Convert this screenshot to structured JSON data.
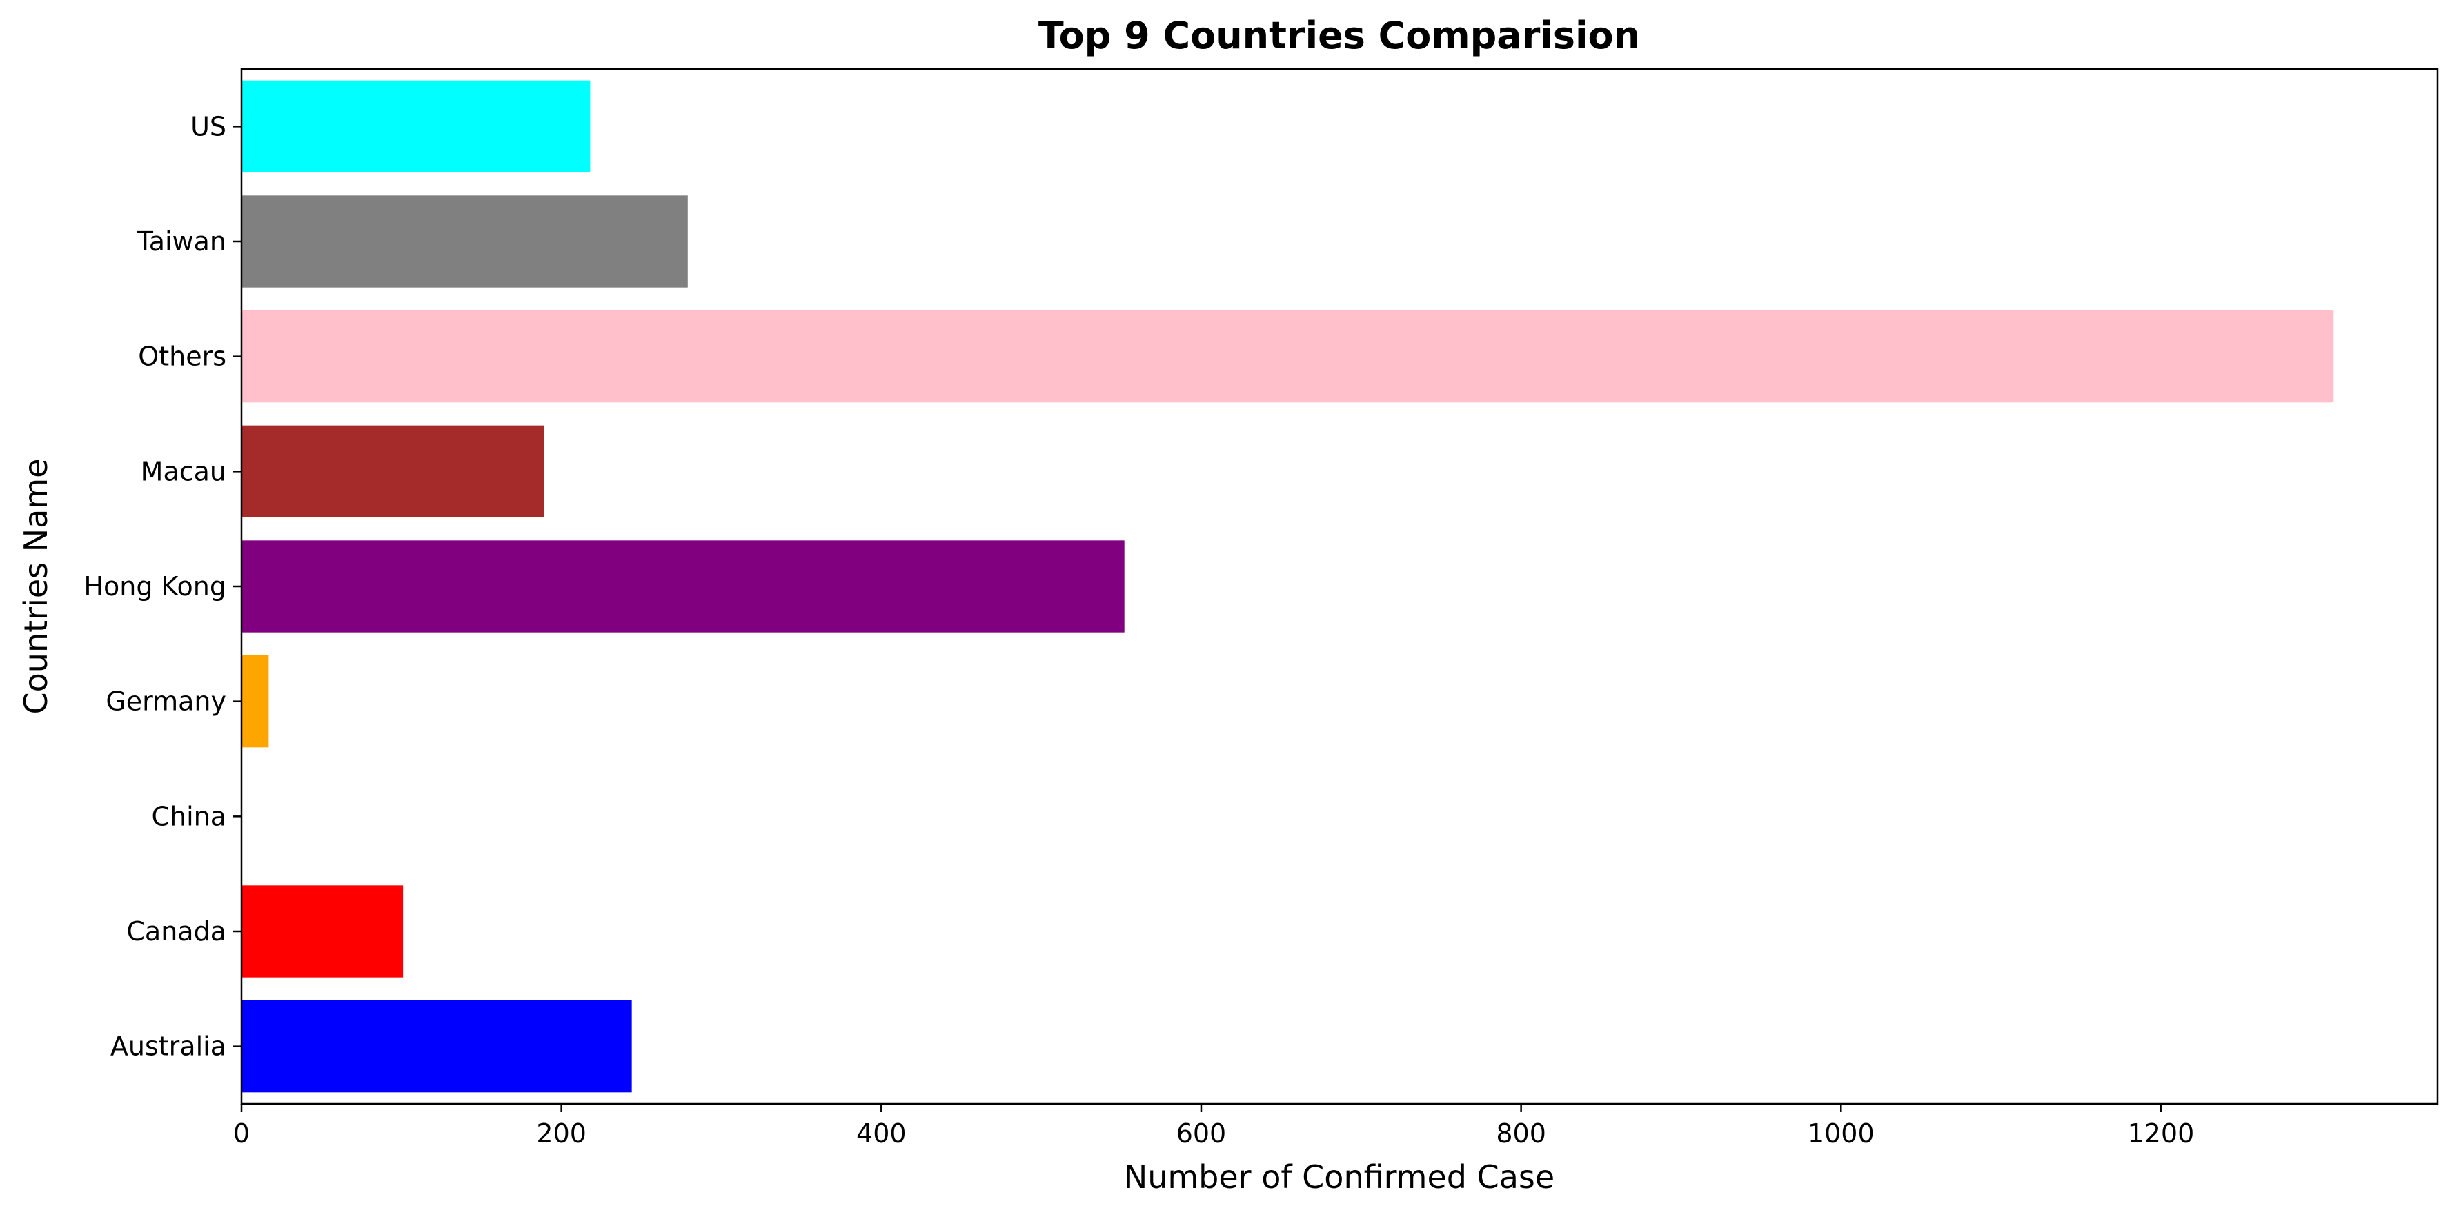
{
  "chart_data": {
    "type": "bar",
    "orientation": "horizontal",
    "title": "Top 9 Countries Comparision",
    "xlabel": "Number of Confirmed Case",
    "ylabel": "Countries Name",
    "categories": [
      "Australia",
      "Canada",
      "China",
      "Germany",
      "Hong Kong",
      "Macau",
      "Others",
      "Taiwan",
      "US"
    ],
    "values": [
      244,
      101,
      0,
      17,
      552,
      189,
      1308,
      279,
      218
    ],
    "colors": [
      "#0000ff",
      "#ff0000",
      "#008000",
      "#ffa500",
      "#800080",
      "#a52a2a",
      "#ffc0cb",
      "#808080",
      "#00ffff"
    ],
    "xlim": [
      0,
      1373
    ],
    "xticks": [
      0,
      200,
      400,
      600,
      800,
      1000,
      1200
    ],
    "grid": false,
    "legend": "none"
  }
}
